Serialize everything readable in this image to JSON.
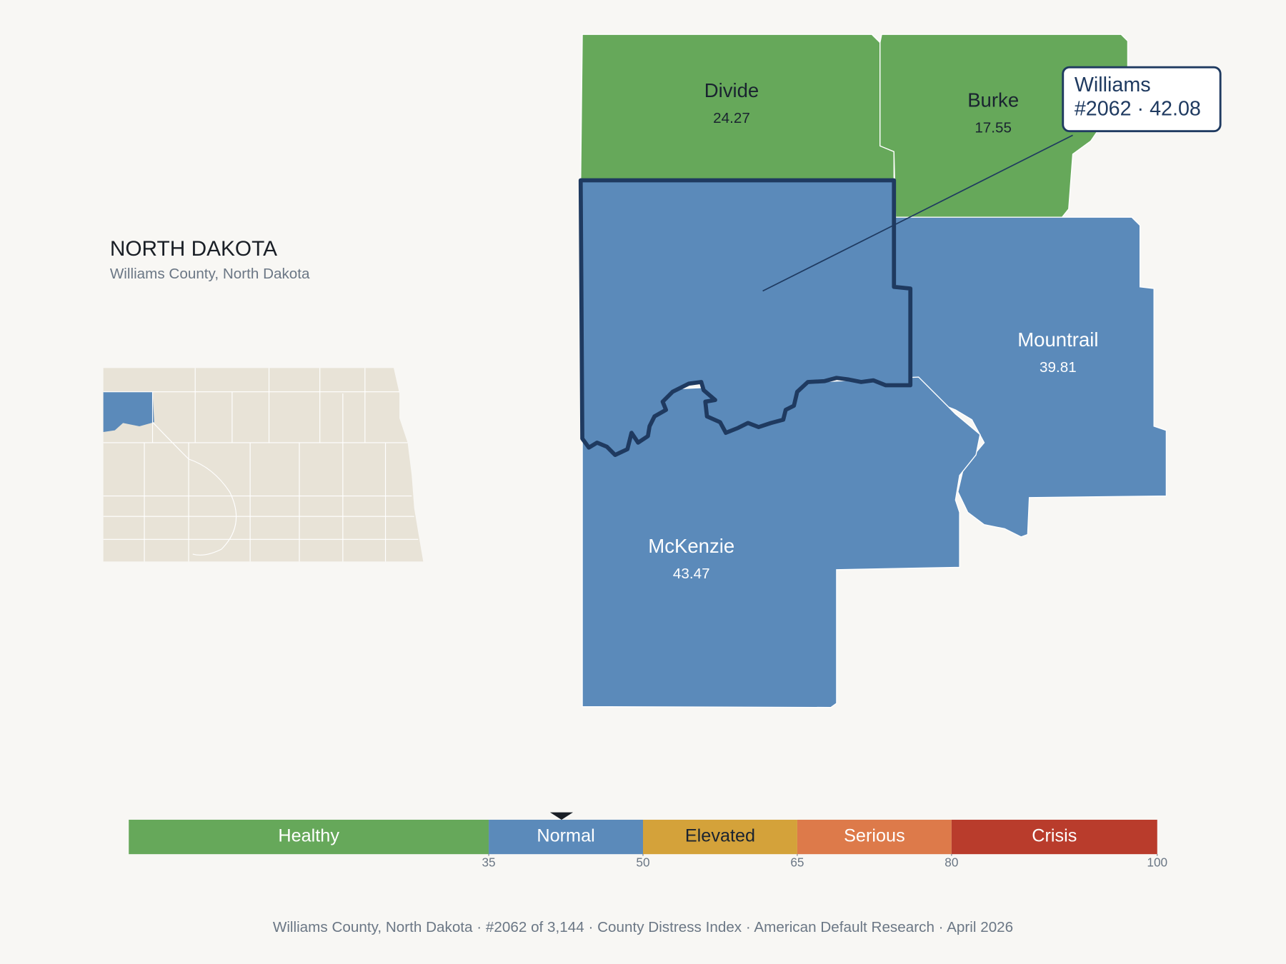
{
  "header": {
    "title": "NORTH DAKOTA",
    "subtitle": "Williams County, North Dakota"
  },
  "focus": {
    "name": "Williams",
    "label": "#2062 · 42.08",
    "value": 42.08
  },
  "counties": [
    {
      "name": "Divide",
      "value": 24.27,
      "value_label": "24.27"
    },
    {
      "name": "Burke",
      "value": 17.55,
      "value_label": "17.55"
    },
    {
      "name": "Mountrail",
      "value": 39.81,
      "value_label": "39.81"
    },
    {
      "name": "McKenzie",
      "value": 43.47,
      "value_label": "43.47"
    }
  ],
  "scale": {
    "range": [
      0,
      100
    ],
    "ticks": [
      35,
      50,
      65,
      80,
      100
    ],
    "bands": [
      {
        "label": "Healthy",
        "color": "#66a85a",
        "text_color": "#ffffff"
      },
      {
        "label": "Normal",
        "color": "#5b8aba",
        "text_color": "#ffffff"
      },
      {
        "label": "Elevated",
        "color": "#d4a23a",
        "text_color": "#1a2330"
      },
      {
        "label": "Serious",
        "color": "#dd7a4a",
        "text_color": "#ffffff"
      },
      {
        "label": "Crisis",
        "color": "#b93c2c",
        "text_color": "#ffffff"
      }
    ]
  },
  "footer": "Williams County, North Dakota  ·  #2062 of 3,144  ·  County Distress Index  ·  American Default Research  ·  April 2026"
}
